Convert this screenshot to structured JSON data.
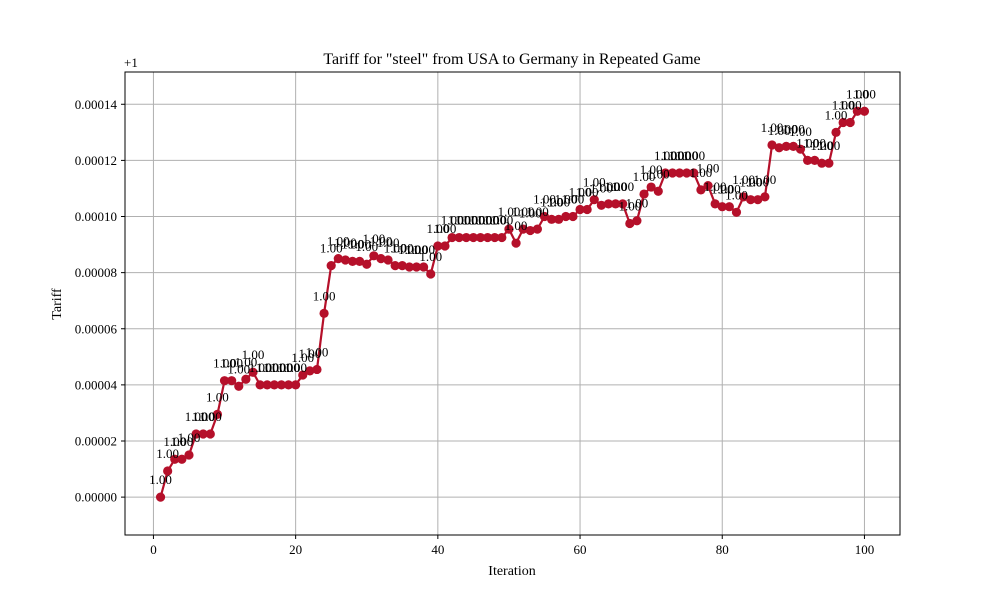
{
  "chart_data": {
    "type": "line",
    "title": "Tariff for \"steel\" from USA to Germany in Repeated Game",
    "xlabel": "Iteration",
    "ylabel": "Tariff",
    "offset_label": "+1",
    "xlim": [
      -4,
      105
    ],
    "ylim": [
      -1.35e-05,
      0.0001515
    ],
    "x_ticks": [
      0,
      20,
      40,
      60,
      80,
      100
    ],
    "x_tick_labels": [
      "0",
      "20",
      "40",
      "60",
      "80",
      "100"
    ],
    "y_ticks": [
      0,
      2e-05,
      4e-05,
      6e-05,
      8e-05,
      0.0001,
      0.00012,
      0.00014
    ],
    "y_tick_labels": [
      "0.00000",
      "0.00002",
      "0.00004",
      "0.00006",
      "0.00008",
      "0.00010",
      "0.00012",
      "0.00014"
    ],
    "grid": true,
    "series_color": "#b5102a",
    "point_label_text": "1.00",
    "series": [
      {
        "x": [
          1,
          2,
          3,
          4,
          5,
          6,
          7,
          8,
          9,
          10,
          11,
          12,
          13,
          14,
          15,
          16,
          17,
          18,
          19,
          20,
          21,
          22,
          23,
          24,
          25,
          26,
          27,
          28,
          29,
          30,
          31,
          32,
          33,
          34,
          35,
          36,
          37,
          38,
          39,
          40,
          41,
          42,
          43,
          44,
          45,
          46,
          47,
          48,
          49,
          50,
          51,
          52,
          53,
          54,
          55,
          56,
          57,
          58,
          59,
          60,
          61,
          62,
          63,
          64,
          65,
          66,
          67,
          68,
          69,
          70,
          71,
          72,
          73,
          74,
          75,
          76,
          77,
          78,
          79,
          80,
          81,
          82,
          83,
          84,
          85,
          86,
          87,
          88,
          89,
          90,
          91,
          92,
          93,
          94,
          95,
          96,
          97,
          98,
          99,
          100
        ],
        "values": [
          0.0,
          9.3e-06,
          1.35e-05,
          1.35e-05,
          1.5e-05,
          2.25e-05,
          2.25e-05,
          2.25e-05,
          2.95e-05,
          4.15e-05,
          4.15e-05,
          3.95e-05,
          4.2e-05,
          4.45e-05,
          4e-05,
          4e-05,
          4e-05,
          4e-05,
          4e-05,
          4e-05,
          4.35e-05,
          4.5e-05,
          4.55e-05,
          6.55e-05,
          8.25e-05,
          8.5e-05,
          8.45e-05,
          8.4e-05,
          8.4e-05,
          8.3e-05,
          8.6e-05,
          8.5e-05,
          8.45e-05,
          8.25e-05,
          8.25e-05,
          8.2e-05,
          8.2e-05,
          8.2e-05,
          7.95e-05,
          8.95e-05,
          8.95e-05,
          9.25e-05,
          9.25e-05,
          9.25e-05,
          9.25e-05,
          9.25e-05,
          9.25e-05,
          9.25e-05,
          9.25e-05,
          9.55e-05,
          9.05e-05,
          9.55e-05,
          9.5e-05,
          9.55e-05,
          0.0001,
          9.9e-05,
          9.9e-05,
          0.0001,
          0.0001,
          0.0001025,
          0.0001025,
          0.000106,
          0.000104,
          0.0001045,
          0.0001045,
          0.0001045,
          9.75e-05,
          9.85e-05,
          0.000108,
          0.0001105,
          0.000109,
          0.0001155,
          0.0001155,
          0.0001155,
          0.0001155,
          0.0001155,
          0.0001095,
          0.000111,
          0.0001045,
          0.0001035,
          0.0001035,
          0.0001015,
          0.000107,
          0.000106,
          0.000106,
          0.000107,
          0.0001255,
          0.0001245,
          0.000125,
          0.000125,
          0.000124,
          0.00012,
          0.00012,
          0.000119,
          0.000119,
          0.00013,
          0.0001335,
          0.0001335,
          0.0001375,
          0.0001375
        ]
      }
    ]
  }
}
